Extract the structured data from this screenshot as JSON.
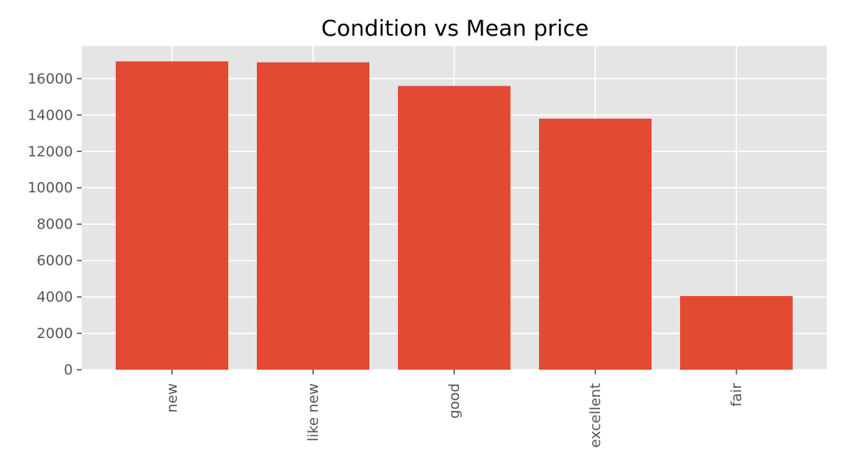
{
  "chart_data": {
    "type": "bar",
    "title": "Condition vs Mean price",
    "xlabel": "",
    "ylabel": "",
    "categories": [
      "new",
      "like new",
      "good",
      "excellent",
      "fair"
    ],
    "values": [
      16950,
      16900,
      15600,
      13800,
      4050
    ],
    "ylim": [
      0,
      17800
    ],
    "yticks": [
      "0",
      "2000",
      "4000",
      "6000",
      "8000",
      "10000",
      "12000",
      "14000",
      "16000"
    ],
    "grid": true,
    "legend": "none"
  },
  "colors": {
    "bar": "#E24A33",
    "plot_background": "#E5E5E5",
    "grid": "#FFFFFF",
    "tick_text": "#555555"
  }
}
